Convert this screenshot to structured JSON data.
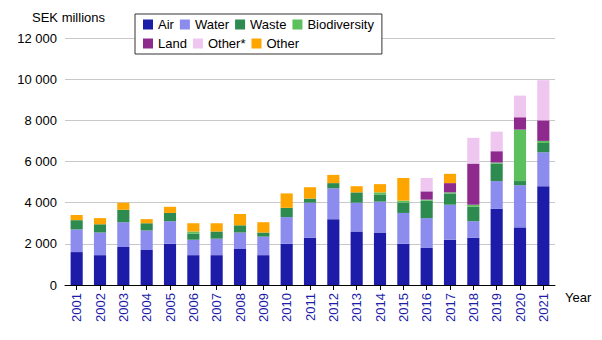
{
  "chart_data": {
    "type": "bar",
    "stacked": true,
    "grid": true,
    "legend": "top-left",
    "y_label": "SEK millions",
    "x_label": "Year",
    "categories": [
      "2001",
      "2002",
      "2003",
      "2004",
      "2005",
      "2006",
      "2007",
      "2008",
      "2009",
      "2010",
      "2011",
      "2012",
      "2013",
      "2014",
      "2015",
      "2016",
      "2017",
      "2018",
      "2019",
      "2020",
      "2021"
    ],
    "ylim": [
      0,
      12000
    ],
    "yticks": [
      0,
      {
        "value": 2000,
        "label": "2 000"
      },
      {
        "value": 4000,
        "label": "4 000"
      },
      {
        "value": 6000,
        "label": "6 000"
      },
      {
        "value": 8000,
        "label": "8 000"
      },
      {
        "value": 10000,
        "label": "10 000"
      },
      {
        "value": 12000,
        "label": "12 000"
      }
    ],
    "series": [
      {
        "name": "Air",
        "color": "#1c1ca8",
        "values": [
          1600,
          1450,
          1850,
          1700,
          2000,
          1450,
          1450,
          1750,
          1450,
          2000,
          2300,
          3200,
          2600,
          2550,
          2000,
          1800,
          2200,
          2300,
          3700,
          2800,
          4800
        ]
      },
      {
        "name": "Water",
        "color": "#8c8cee",
        "values": [
          1100,
          1100,
          1200,
          950,
          1100,
          750,
          800,
          800,
          900,
          1300,
          1700,
          1500,
          1400,
          1500,
          1500,
          1450,
          1700,
          800,
          1350,
          2050,
          1650
        ]
      },
      {
        "name": "Waste",
        "color": "#2e8b4f",
        "values": [
          450,
          400,
          600,
          350,
          400,
          300,
          350,
          350,
          200,
          450,
          200,
          250,
          500,
          350,
          500,
          850,
          550,
          700,
          850,
          200,
          450
        ]
      },
      {
        "name": "Biodiversity",
        "color": "#5cc05c",
        "values": [
          0,
          0,
          0,
          0,
          0,
          100,
          0,
          0,
          0,
          0,
          0,
          0,
          0,
          100,
          100,
          50,
          50,
          100,
          50,
          2500,
          100
        ]
      },
      {
        "name": "Land",
        "color": "#8e2a8e",
        "values": [
          0,
          0,
          0,
          0,
          0,
          0,
          0,
          0,
          0,
          0,
          0,
          0,
          0,
          0,
          0,
          400,
          450,
          2000,
          550,
          600,
          1000
        ]
      },
      {
        "name": "Other*",
        "color": "#eec6f0",
        "values": [
          0,
          0,
          0,
          0,
          0,
          0,
          0,
          0,
          0,
          0,
          0,
          0,
          0,
          0,
          0,
          650,
          0,
          1250,
          950,
          1050,
          1950
        ]
      },
      {
        "name": "Other",
        "color": "#ffa500",
        "values": [
          250,
          300,
          350,
          200,
          300,
          400,
          400,
          550,
          500,
          700,
          550,
          400,
          300,
          400,
          1100,
          0,
          450,
          0,
          0,
          0,
          0
        ]
      }
    ]
  }
}
